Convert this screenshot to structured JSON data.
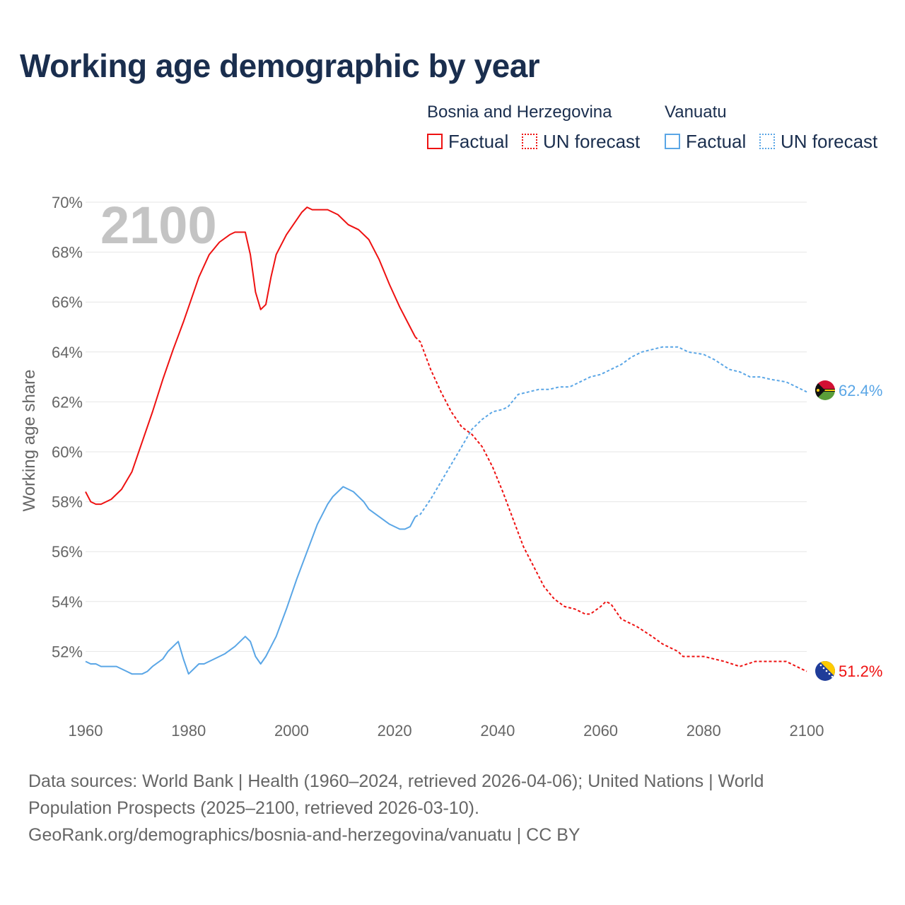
{
  "title": "Working age demographic by year",
  "legend": {
    "groups": [
      {
        "name": "Bosnia and Herzegovina",
        "color": "#ee1111",
        "items": [
          {
            "label": "Factual",
            "style": "solid"
          },
          {
            "label": "UN forecast",
            "style": "dotted"
          }
        ]
      },
      {
        "name": "Vanuatu",
        "color": "#5aa6e6",
        "items": [
          {
            "label": "Factual",
            "style": "solid"
          },
          {
            "label": "UN forecast",
            "style": "dotted"
          }
        ]
      }
    ]
  },
  "footer": {
    "line1": "Data sources: World Bank | Health (1960–2024, retrieved 2026-04-06); United Nations | World",
    "line2": "Population Prospects (2025–2100, retrieved 2026-03-10).",
    "line3": "GeoRank.org/demographics/bosnia-and-herzegovina/vanuatu | CC BY"
  },
  "chart_data": {
    "type": "line",
    "year_overlay": "2100",
    "ylabel": "Working age share",
    "xlabel": "",
    "xlim": [
      1960,
      2100
    ],
    "ylim": [
      50,
      70
    ],
    "x_ticks": [
      1960,
      1980,
      2000,
      2020,
      2040,
      2060,
      2080,
      2100
    ],
    "y_ticks": [
      52,
      54,
      56,
      58,
      60,
      62,
      64,
      66,
      68,
      70
    ],
    "y_tick_labels": [
      "52%",
      "54%",
      "56%",
      "58%",
      "60%",
      "62%",
      "64%",
      "66%",
      "68%",
      "70%"
    ],
    "factual_end_year": 2024,
    "series": [
      {
        "name": "Bosnia and Herzegovina",
        "color": "#ee1111",
        "end_label": "51.2%",
        "points": [
          [
            1960,
            58.4
          ],
          [
            1961,
            58.0
          ],
          [
            1962,
            57.9
          ],
          [
            1963,
            57.9
          ],
          [
            1965,
            58.1
          ],
          [
            1967,
            58.5
          ],
          [
            1969,
            59.2
          ],
          [
            1971,
            60.4
          ],
          [
            1973,
            61.6
          ],
          [
            1975,
            62.9
          ],
          [
            1977,
            64.1
          ],
          [
            1979,
            65.2
          ],
          [
            1980,
            65.8
          ],
          [
            1982,
            67.0
          ],
          [
            1984,
            67.9
          ],
          [
            1986,
            68.4
          ],
          [
            1988,
            68.7
          ],
          [
            1989,
            68.8
          ],
          [
            1991,
            68.8
          ],
          [
            1992,
            67.9
          ],
          [
            1993,
            66.4
          ],
          [
            1994,
            65.7
          ],
          [
            1995,
            65.9
          ],
          [
            1996,
            67.0
          ],
          [
            1997,
            67.9
          ],
          [
            1999,
            68.7
          ],
          [
            2001,
            69.3
          ],
          [
            2002,
            69.6
          ],
          [
            2003,
            69.8
          ],
          [
            2004,
            69.7
          ],
          [
            2007,
            69.7
          ],
          [
            2009,
            69.5
          ],
          [
            2011,
            69.1
          ],
          [
            2013,
            68.9
          ],
          [
            2015,
            68.5
          ],
          [
            2017,
            67.7
          ],
          [
            2019,
            66.7
          ],
          [
            2021,
            65.8
          ],
          [
            2023,
            65.0
          ],
          [
            2024,
            64.6
          ],
          [
            2025,
            64.4
          ],
          [
            2027,
            63.3
          ],
          [
            2029,
            62.4
          ],
          [
            2031,
            61.6
          ],
          [
            2033,
            61.0
          ],
          [
            2035,
            60.7
          ],
          [
            2037,
            60.2
          ],
          [
            2039,
            59.4
          ],
          [
            2041,
            58.4
          ],
          [
            2043,
            57.3
          ],
          [
            2045,
            56.2
          ],
          [
            2047,
            55.4
          ],
          [
            2049,
            54.6
          ],
          [
            2051,
            54.1
          ],
          [
            2053,
            53.8
          ],
          [
            2055,
            53.7
          ],
          [
            2057,
            53.5
          ],
          [
            2058,
            53.5
          ],
          [
            2060,
            53.8
          ],
          [
            2061,
            54.0
          ],
          [
            2062,
            53.9
          ],
          [
            2064,
            53.3
          ],
          [
            2067,
            53.0
          ],
          [
            2070,
            52.6
          ],
          [
            2072,
            52.3
          ],
          [
            2075,
            52.0
          ],
          [
            2076,
            51.8
          ],
          [
            2080,
            51.8
          ],
          [
            2084,
            51.6
          ],
          [
            2087,
            51.4
          ],
          [
            2090,
            51.6
          ],
          [
            2096,
            51.6
          ],
          [
            2098,
            51.4
          ],
          [
            2100,
            51.2
          ]
        ]
      },
      {
        "name": "Vanuatu",
        "color": "#5aa6e6",
        "end_label": "62.4%",
        "points": [
          [
            1960,
            51.6
          ],
          [
            1961,
            51.5
          ],
          [
            1962,
            51.5
          ],
          [
            1963,
            51.4
          ],
          [
            1966,
            51.4
          ],
          [
            1968,
            51.2
          ],
          [
            1969,
            51.1
          ],
          [
            1971,
            51.1
          ],
          [
            1972,
            51.2
          ],
          [
            1973,
            51.4
          ],
          [
            1975,
            51.7
          ],
          [
            1976,
            52.0
          ],
          [
            1977,
            52.2
          ],
          [
            1978,
            52.4
          ],
          [
            1979,
            51.7
          ],
          [
            1980,
            51.1
          ],
          [
            1981,
            51.3
          ],
          [
            1982,
            51.5
          ],
          [
            1983,
            51.5
          ],
          [
            1985,
            51.7
          ],
          [
            1987,
            51.9
          ],
          [
            1989,
            52.2
          ],
          [
            1991,
            52.6
          ],
          [
            1992,
            52.4
          ],
          [
            1993,
            51.8
          ],
          [
            1994,
            51.5
          ],
          [
            1995,
            51.8
          ],
          [
            1997,
            52.6
          ],
          [
            1999,
            53.7
          ],
          [
            2001,
            54.9
          ],
          [
            2003,
            56.0
          ],
          [
            2005,
            57.1
          ],
          [
            2007,
            57.9
          ],
          [
            2008,
            58.2
          ],
          [
            2010,
            58.6
          ],
          [
            2012,
            58.4
          ],
          [
            2014,
            58.0
          ],
          [
            2015,
            57.7
          ],
          [
            2017,
            57.4
          ],
          [
            2019,
            57.1
          ],
          [
            2021,
            56.9
          ],
          [
            2022,
            56.9
          ],
          [
            2023,
            57.0
          ],
          [
            2024,
            57.4
          ],
          [
            2025,
            57.5
          ],
          [
            2027,
            58.1
          ],
          [
            2029,
            58.8
          ],
          [
            2031,
            59.5
          ],
          [
            2033,
            60.2
          ],
          [
            2035,
            60.9
          ],
          [
            2037,
            61.3
          ],
          [
            2039,
            61.6
          ],
          [
            2041,
            61.7
          ],
          [
            2042,
            61.8
          ],
          [
            2044,
            62.3
          ],
          [
            2046,
            62.4
          ],
          [
            2048,
            62.5
          ],
          [
            2050,
            62.5
          ],
          [
            2052,
            62.6
          ],
          [
            2054,
            62.6
          ],
          [
            2056,
            62.8
          ],
          [
            2058,
            63.0
          ],
          [
            2060,
            63.1
          ],
          [
            2062,
            63.3
          ],
          [
            2064,
            63.5
          ],
          [
            2066,
            63.8
          ],
          [
            2068,
            64.0
          ],
          [
            2070,
            64.1
          ],
          [
            2072,
            64.2
          ],
          [
            2075,
            64.2
          ],
          [
            2077,
            64.0
          ],
          [
            2080,
            63.9
          ],
          [
            2082,
            63.7
          ],
          [
            2085,
            63.3
          ],
          [
            2087,
            63.2
          ],
          [
            2089,
            63.0
          ],
          [
            2091,
            63.0
          ],
          [
            2093,
            62.9
          ],
          [
            2096,
            62.8
          ],
          [
            2098,
            62.6
          ],
          [
            2100,
            62.4
          ]
        ]
      }
    ]
  }
}
